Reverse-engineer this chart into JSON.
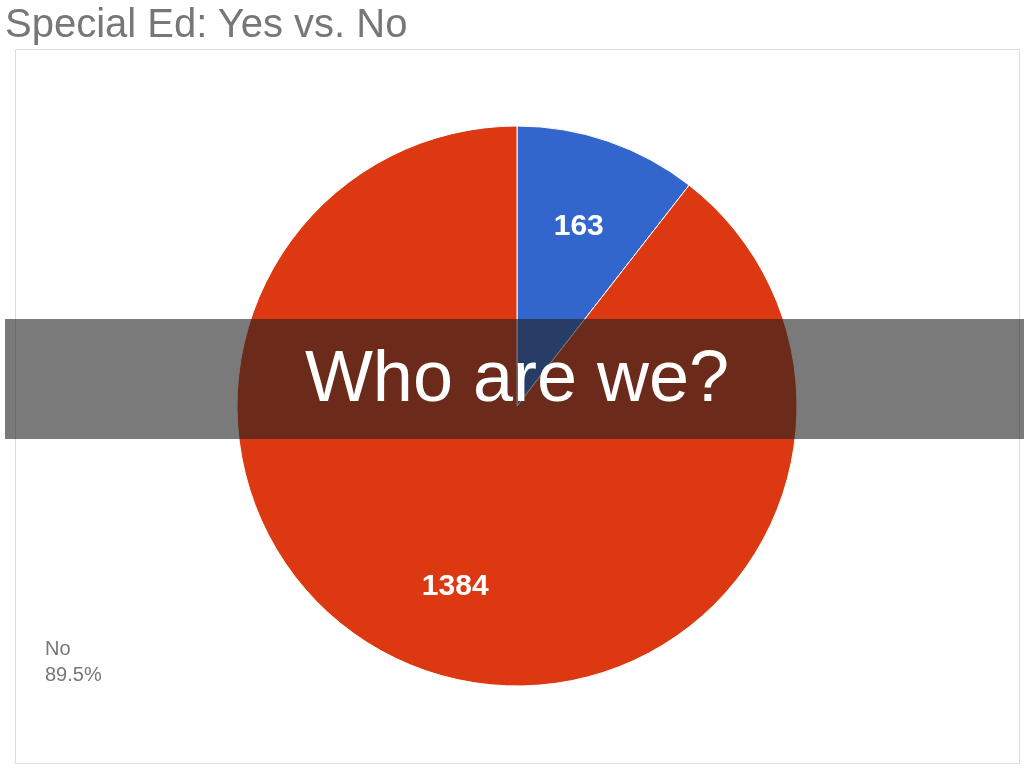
{
  "chart_data": {
    "type": "pie",
    "title": "Special Ed: Yes vs. No",
    "categories": [
      null,
      "No"
    ],
    "values": [
      163,
      1384
    ],
    "colors": [
      "#3366cc",
      "#dc3912"
    ],
    "data_labels": true,
    "legend": false,
    "annotations": [
      "89.5%",
      "Who are we?"
    ]
  }
}
